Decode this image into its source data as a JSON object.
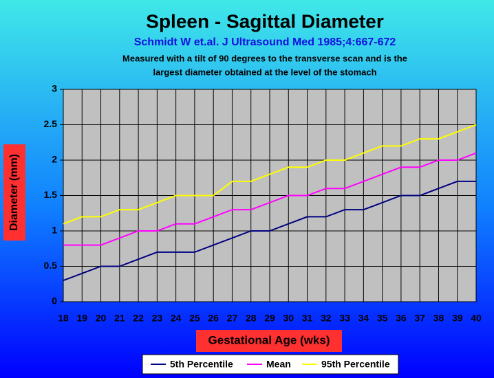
{
  "chart_data": {
    "type": "line",
    "title": "Spleen - Sagittal Diameter",
    "subtitle": "Schmidt W et.al. J Ultrasound Med 1985;4:667-672",
    "description": [
      "Measured with a tilt of 90 degrees to the transverse scan and is the",
      "largest diameter obtained at the level of the stomach"
    ],
    "x_label": "Gestational Age (wks)",
    "y_label": "Diameter  (mm)",
    "categories": [
      "18",
      "19",
      "20",
      "21",
      "22",
      "23",
      "24",
      "25",
      "26",
      "27",
      "28",
      "29",
      "30",
      "31",
      "32",
      "33",
      "34",
      "35",
      "36",
      "37",
      "38",
      "39",
      "40"
    ],
    "series": [
      {
        "name": "5th Percentile",
        "color": "#000080",
        "values": [
          0.3,
          0.4,
          0.5,
          0.5,
          0.6,
          0.7,
          0.7,
          0.7,
          0.8,
          0.9,
          1.0,
          1.0,
          1.1,
          1.2,
          1.2,
          1.3,
          1.3,
          1.4,
          1.5,
          1.5,
          1.6,
          1.7,
          1.7
        ]
      },
      {
        "name": "Mean",
        "color": "#ff00ff",
        "values": [
          0.8,
          0.8,
          0.8,
          0.9,
          1.0,
          1.0,
          1.1,
          1.1,
          1.2,
          1.3,
          1.3,
          1.4,
          1.5,
          1.5,
          1.6,
          1.6,
          1.7,
          1.8,
          1.9,
          1.9,
          2.0,
          2.0,
          2.1
        ]
      },
      {
        "name": "95th Percentile",
        "color": "#ffff00",
        "values": [
          1.1,
          1.2,
          1.2,
          1.3,
          1.3,
          1.4,
          1.5,
          1.5,
          1.5,
          1.7,
          1.7,
          1.8,
          1.9,
          1.9,
          2.0,
          2.0,
          2.1,
          2.2,
          2.2,
          2.3,
          2.3,
          2.4,
          2.5
        ]
      }
    ],
    "ylim": [
      0,
      3
    ],
    "yticks": [
      0,
      0.5,
      1,
      1.5,
      2,
      2.5,
      3
    ],
    "grid": true,
    "legend": "bottom"
  }
}
